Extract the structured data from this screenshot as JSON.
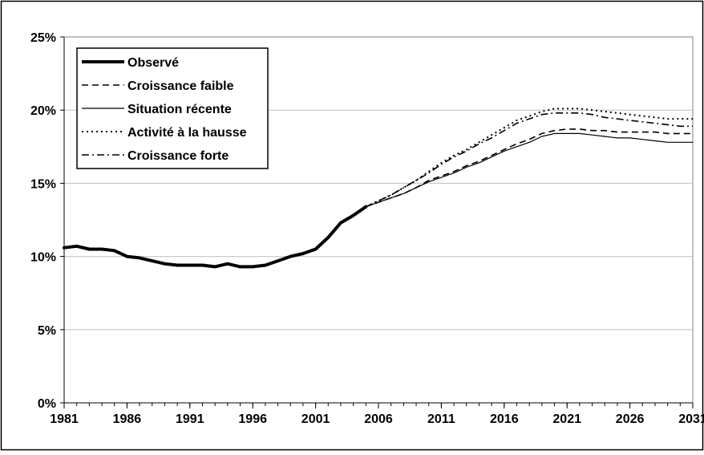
{
  "chart_data": {
    "type": "line",
    "title": "",
    "xlabel": "",
    "ylabel": "",
    "xlim": [
      1981,
      2031
    ],
    "ylim": [
      0,
      25
    ],
    "x_ticks": [
      "1981",
      "1986",
      "1991",
      "1996",
      "2001",
      "2006",
      "2011",
      "2016",
      "2021",
      "2026",
      "2031"
    ],
    "y_ticks": [
      "0%",
      "5%",
      "10%",
      "15%",
      "20%",
      "25%"
    ],
    "grid": "horizontal",
    "legend_position": "top-left",
    "series": [
      {
        "name": "Observé",
        "style": "solid-thick",
        "color": "#000000",
        "x": [
          1981,
          1982,
          1983,
          1984,
          1985,
          1986,
          1987,
          1988,
          1989,
          1990,
          1991,
          1992,
          1993,
          1994,
          1995,
          1996,
          1997,
          1998,
          1999,
          2000,
          2001,
          2002,
          2003,
          2004,
          2005
        ],
        "y": [
          10.6,
          10.7,
          10.5,
          10.5,
          10.4,
          10.0,
          9.9,
          9.7,
          9.5,
          9.4,
          9.4,
          9.4,
          9.3,
          9.5,
          9.3,
          9.3,
          9.4,
          9.7,
          10.0,
          10.2,
          10.5,
          11.3,
          12.3,
          12.8,
          13.4
        ]
      },
      {
        "name": "Croissance faible",
        "style": "dashed",
        "color": "#000000",
        "x": [
          2005,
          2006,
          2007,
          2008,
          2009,
          2010,
          2011,
          2012,
          2013,
          2014,
          2015,
          2016,
          2017,
          2018,
          2019,
          2020,
          2021,
          2022,
          2023,
          2024,
          2025,
          2026,
          2027,
          2028,
          2029,
          2030,
          2031
        ],
        "y": [
          13.4,
          13.7,
          14.0,
          14.3,
          14.7,
          15.2,
          15.5,
          15.8,
          16.2,
          16.5,
          16.9,
          17.3,
          17.7,
          18.0,
          18.4,
          18.6,
          18.7,
          18.7,
          18.6,
          18.6,
          18.5,
          18.5,
          18.5,
          18.5,
          18.4,
          18.4,
          18.4
        ]
      },
      {
        "name": "Situation récente",
        "style": "solid-thin",
        "color": "#000000",
        "x": [
          2005,
          2006,
          2007,
          2008,
          2009,
          2010,
          2011,
          2012,
          2013,
          2014,
          2015,
          2016,
          2017,
          2018,
          2019,
          2020,
          2021,
          2022,
          2023,
          2024,
          2025,
          2026,
          2027,
          2028,
          2029,
          2030,
          2031
        ],
        "y": [
          13.4,
          13.7,
          14.0,
          14.3,
          14.7,
          15.1,
          15.4,
          15.7,
          16.1,
          16.4,
          16.8,
          17.2,
          17.5,
          17.8,
          18.2,
          18.4,
          18.4,
          18.4,
          18.3,
          18.2,
          18.1,
          18.1,
          18.0,
          17.9,
          17.8,
          17.8,
          17.8
        ]
      },
      {
        "name": "Activité à la hausse",
        "style": "dotted",
        "color": "#000000",
        "x": [
          2005,
          2006,
          2007,
          2008,
          2009,
          2010,
          2011,
          2012,
          2013,
          2014,
          2015,
          2016,
          2017,
          2018,
          2019,
          2020,
          2021,
          2022,
          2023,
          2024,
          2025,
          2026,
          2027,
          2028,
          2029,
          2030,
          2031
        ],
        "y": [
          13.4,
          13.8,
          14.2,
          14.7,
          15.2,
          15.8,
          16.4,
          16.9,
          17.3,
          17.8,
          18.3,
          18.8,
          19.3,
          19.6,
          19.9,
          20.1,
          20.1,
          20.1,
          20.0,
          19.9,
          19.8,
          19.7,
          19.6,
          19.5,
          19.4,
          19.4,
          19.4
        ]
      },
      {
        "name": "Croissance forte",
        "style": "dash-dot",
        "color": "#000000",
        "x": [
          2005,
          2006,
          2007,
          2008,
          2009,
          2010,
          2011,
          2012,
          2013,
          2014,
          2015,
          2016,
          2017,
          2018,
          2019,
          2020,
          2021,
          2022,
          2023,
          2024,
          2025,
          2026,
          2027,
          2028,
          2029,
          2030,
          2031
        ],
        "y": [
          13.4,
          13.8,
          14.2,
          14.7,
          15.2,
          15.7,
          16.3,
          16.8,
          17.2,
          17.7,
          18.1,
          18.6,
          19.1,
          19.4,
          19.7,
          19.8,
          19.8,
          19.8,
          19.7,
          19.5,
          19.4,
          19.3,
          19.2,
          19.1,
          19.0,
          18.9,
          18.9
        ]
      }
    ]
  }
}
